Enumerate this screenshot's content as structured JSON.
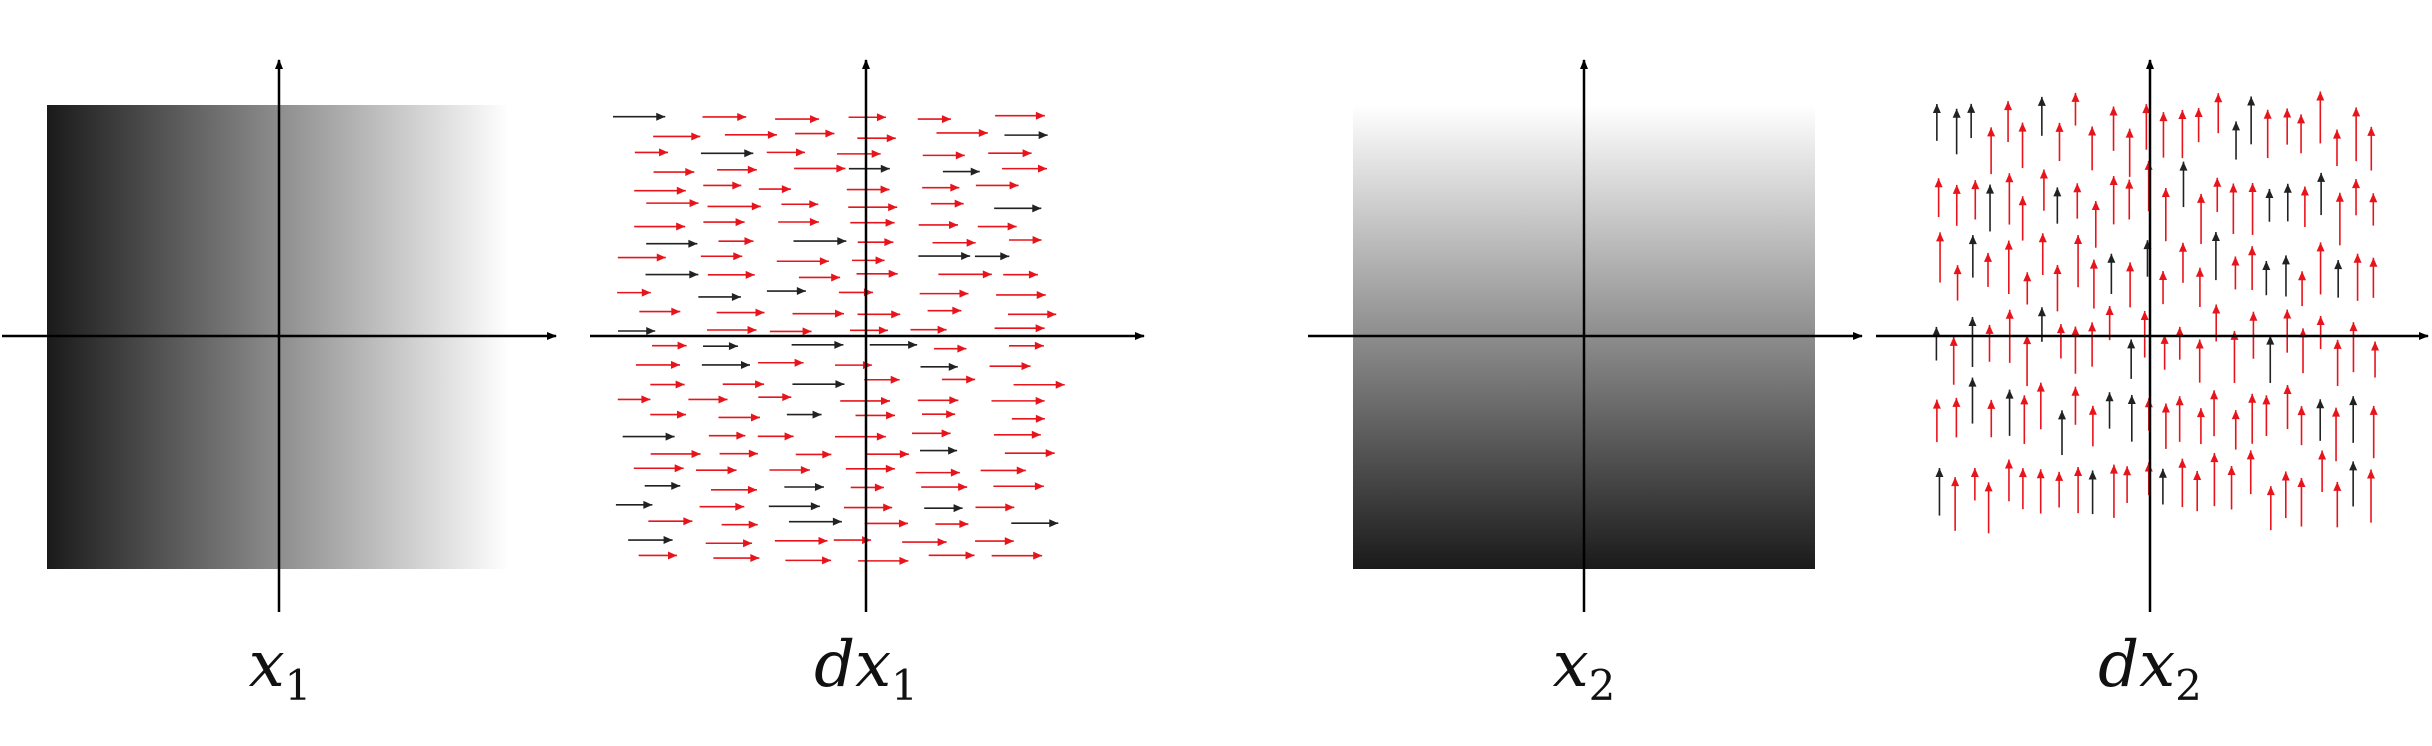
{
  "panels": [
    {
      "id": "x1",
      "kind": "gradient",
      "direction": "horizontal",
      "dark": "#1a1a1a",
      "light": "#ffffff",
      "caption": {
        "base": "x",
        "sub": "1"
      }
    },
    {
      "id": "dx1",
      "kind": "vector-field",
      "direction": "right",
      "caption": {
        "base": "dx",
        "sub": "1"
      }
    },
    {
      "id": "x2",
      "kind": "gradient",
      "direction": "vertical",
      "dark": "#1a1a1a",
      "light": "#ffffff",
      "caption": {
        "base": "x",
        "sub": "2"
      }
    },
    {
      "id": "dx2",
      "kind": "vector-field",
      "direction": "up",
      "caption": {
        "base": "dx",
        "sub": "2"
      }
    }
  ],
  "colors": {
    "arrow_primary": "#e8141b",
    "arrow_secondary": "#222222",
    "axis": "#000000"
  }
}
